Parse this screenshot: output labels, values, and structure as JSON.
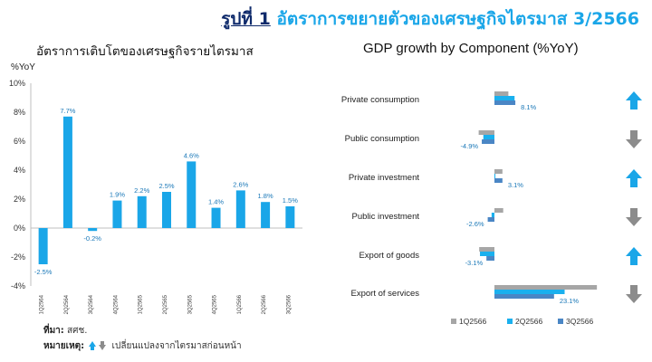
{
  "page_title": {
    "prefix": "รูปที่ 1",
    "main": "อัตราการขยายตัวของเศรษฐกิจไตรมาส 3/2566"
  },
  "footer": {
    "source_label": "ที่มา:",
    "source_value": "สศช.",
    "note_label": "หมายเหตุ:",
    "note_value": "เปลี่ยนแปลงจากไตรมาสก่อนหน้า"
  },
  "colors": {
    "accent": "#1aa6e8",
    "title_dark": "#0e2a6b",
    "bar_blue": "#1aa6e8",
    "q1_gray": "#a6a6a6",
    "q2_cyan": "#1ab0ee",
    "q3_blue": "#4a86c5",
    "arrow_up": "#1aa6e8",
    "arrow_down": "#8c8c8c"
  },
  "chart_data": [
    {
      "type": "bar",
      "title": "อัตราการเติบโตของเศรษฐกิจรายไตรมาส",
      "ylabel": "%YoY",
      "categories": [
        "1Q2564",
        "2Q2564",
        "3Q2564",
        "4Q2564",
        "1Q2565",
        "2Q2565",
        "3Q2565",
        "4Q2565",
        "1Q2566",
        "2Q2566",
        "3Q2566"
      ],
      "values": [
        -2.5,
        7.7,
        -0.2,
        1.9,
        2.2,
        2.5,
        4.6,
        1.4,
        2.6,
        1.8,
        1.5
      ],
      "data_labels": [
        "-2.5%",
        "7.7%",
        "-0.2%",
        "1.9%",
        "2.2%",
        "2.5%",
        "4.6%",
        "1.4%",
        "2.6%",
        "1.8%",
        "1.5%"
      ],
      "ylim": [
        -4,
        10
      ],
      "yticks": [
        -4,
        -2,
        0,
        2,
        4,
        6,
        8,
        10
      ],
      "ytick_labels": [
        "-4%",
        "-2%",
        "0%",
        "2%",
        "4%",
        "6%",
        "8%",
        "10%"
      ],
      "grid": false
    },
    {
      "type": "bar",
      "orientation": "horizontal",
      "title": "GDP growth by Component  (%YoY)",
      "categories": [
        "Private consumption",
        "Public consumption",
        "Private investment",
        "Public investment",
        "Export of goods",
        "Export of services"
      ],
      "series": [
        {
          "name": "1Q2566",
          "values": [
            5.4,
            -6.1,
            3.1,
            3.4,
            -5.9,
            39.7
          ]
        },
        {
          "name": "2Q2566",
          "values": [
            7.8,
            -4.3,
            0.3,
            -1.1,
            -5.6,
            27.2
          ]
        },
        {
          "name": "3Q2566",
          "values": [
            8.1,
            -4.9,
            3.1,
            -2.6,
            -3.1,
            23.1
          ]
        }
      ],
      "data_labels": [
        "8.1%",
        "-4.9%",
        "3.1%",
        "-2.6%",
        "-3.1%",
        "23.1%"
      ],
      "trend_arrows": [
        "up",
        "down",
        "up",
        "down",
        "up",
        "down"
      ],
      "xlim": [
        -10,
        40
      ],
      "legend_position": "bottom",
      "grid": false
    }
  ]
}
